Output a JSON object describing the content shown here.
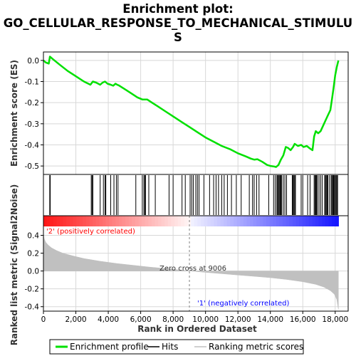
{
  "chart_data": {
    "type": "line",
    "title_lines": [
      "Enrichment plot:",
      "GO_CELLULAR_RESPONSE_TO_MECHANICAL_STIMULU",
      "S"
    ],
    "colors": {
      "enrichment_line": "#00e000",
      "hits": "#000000",
      "ranking_fill": "#c0c0c0",
      "positive_label": "#ff0000",
      "negative_label": "#0000ff",
      "zero_line": "#808080"
    },
    "panels": {
      "enrichment": {
        "ylabel": "Enrichment score (ES)",
        "ylim": [
          -0.54,
          0.04
        ],
        "yticks": [
          0.0,
          -0.1,
          -0.2,
          -0.3,
          -0.4,
          -0.5
        ],
        "ytick_labels": [
          "0.0",
          "-0.1",
          "-0.2",
          "-0.3",
          "-0.4",
          "-0.5"
        ],
        "grid": true,
        "series": [
          {
            "name": "Enrichment profile",
            "x": [
              0,
              150,
              330,
              400,
              600,
              1000,
              1500,
              2000,
              2500,
              2900,
              3050,
              3250,
              3500,
              3650,
              3800,
              3950,
              4150,
              4300,
              4450,
              4550,
              4650,
              5000,
              5400,
              5800,
              6100,
              6400,
              6700,
              7000,
              7500,
              8000,
              8500,
              9006,
              9500,
              10000,
              10500,
              11000,
              11500,
              12000,
              12500,
              12800,
              13000,
              13200,
              13500,
              13800,
              14000,
              14200,
              14350,
              14500,
              14650,
              14800,
              14950,
              15100,
              15250,
              15400,
              15500,
              15700,
              15900,
              16050,
              16250,
              16400,
              16600,
              16700,
              16800,
              16950,
              17100,
              17250,
              17400,
              17550,
              17700,
              17800,
              17900,
              18000,
              18100,
              18200
            ],
            "y": [
              0.0,
              -0.01,
              -0.015,
              0.018,
              0.005,
              -0.02,
              -0.05,
              -0.075,
              -0.1,
              -0.115,
              -0.1,
              -0.105,
              -0.115,
              -0.105,
              -0.1,
              -0.11,
              -0.115,
              -0.12,
              -0.11,
              -0.115,
              -0.118,
              -0.135,
              -0.155,
              -0.175,
              -0.185,
              -0.185,
              -0.2,
              -0.215,
              -0.24,
              -0.265,
              -0.29,
              -0.315,
              -0.34,
              -0.365,
              -0.385,
              -0.405,
              -0.42,
              -0.44,
              -0.455,
              -0.465,
              -0.47,
              -0.468,
              -0.48,
              -0.495,
              -0.5,
              -0.502,
              -0.505,
              -0.495,
              -0.47,
              -0.45,
              -0.41,
              -0.415,
              -0.425,
              -0.41,
              -0.395,
              -0.405,
              -0.4,
              -0.41,
              -0.405,
              -0.415,
              -0.425,
              -0.36,
              -0.335,
              -0.345,
              -0.335,
              -0.31,
              -0.285,
              -0.26,
              -0.235,
              -0.185,
              -0.13,
              -0.07,
              -0.03,
              0.0
            ]
          }
        ]
      },
      "hits": {
        "name": "Hits",
        "positions": [
          390,
          420,
          2950,
          3000,
          3050,
          3500,
          3700,
          3800,
          3850,
          4150,
          4350,
          4500,
          4600,
          5700,
          6100,
          6200,
          6250,
          6300,
          6500,
          6900,
          7750,
          8000,
          8550,
          8750,
          9050,
          9150,
          9250,
          9400,
          9500,
          9600,
          9900,
          10250,
          10500,
          10650,
          10800,
          11000,
          11150,
          11350,
          11600,
          11900,
          12200,
          12700,
          12900,
          13000,
          13150,
          13300,
          13900,
          14200,
          14300,
          14400,
          14450,
          14500,
          14550,
          14600,
          14650,
          14700,
          14800,
          14900,
          15000,
          15350,
          15400,
          15450,
          15500,
          15550,
          15900,
          16000,
          16300,
          16450,
          16700,
          16750,
          16800,
          16850,
          16900,
          17000,
          17100,
          17200,
          17350,
          17400,
          17450,
          17500,
          17550,
          17650,
          17750,
          17800,
          17850,
          17900,
          17950,
          18000,
          18050,
          18100,
          18150
        ]
      },
      "ranking": {
        "ylabel": "Ranked list metric (Signal2Noise)",
        "ylim": [
          -0.45,
          0.5
        ],
        "yticks": [
          0.4,
          0.2,
          0.0,
          -0.2,
          -0.4
        ],
        "ytick_labels": [
          "0.4",
          "0.2",
          "0.0",
          "-0.2",
          "-0.4"
        ],
        "grid": true,
        "series": [
          {
            "name": "Ranking metric scores",
            "x": [
              0,
              50,
              150,
              300,
              500,
              800,
              1200,
              1800,
              2500,
              3500,
              4500,
              5500,
              6500,
              7500,
              8500,
              9006,
              10000,
              11000,
              12000,
              13000,
              14000,
              15000,
              16000,
              16800,
              17300,
              17700,
              17950,
              18100,
              18150,
              18200
            ],
            "y": [
              0.42,
              0.36,
              0.32,
              0.29,
              0.26,
              0.23,
              0.2,
              0.17,
              0.14,
              0.11,
              0.085,
              0.065,
              0.045,
              0.028,
              0.01,
              0.0,
              -0.015,
              -0.03,
              -0.045,
              -0.06,
              -0.075,
              -0.095,
              -0.12,
              -0.15,
              -0.18,
              -0.22,
              -0.26,
              -0.32,
              -0.38,
              -0.43
            ]
          }
        ],
        "annotations": {
          "zero_cross": "Zero cross at 9006",
          "zero_cross_x": 9006,
          "positive": "'2' (positively correlated)",
          "negative": "'1' (negatively correlated)"
        }
      }
    },
    "xaxis": {
      "label": "Rank in Ordered Dataset",
      "xlim": [
        0,
        18800
      ],
      "ticks": [
        0,
        2000,
        4000,
        6000,
        8000,
        10000,
        12000,
        14000,
        16000,
        18000
      ],
      "tick_labels": [
        "0",
        "2,000",
        "4,000",
        "6,000",
        "8,000",
        "10,000",
        "12,000",
        "14,000",
        "16,000",
        "18,000"
      ],
      "n_genes": 18200
    },
    "legend": {
      "placement": "bottom",
      "entries": [
        "Enrichment profile",
        "Hits",
        "Ranking metric scores"
      ]
    }
  }
}
